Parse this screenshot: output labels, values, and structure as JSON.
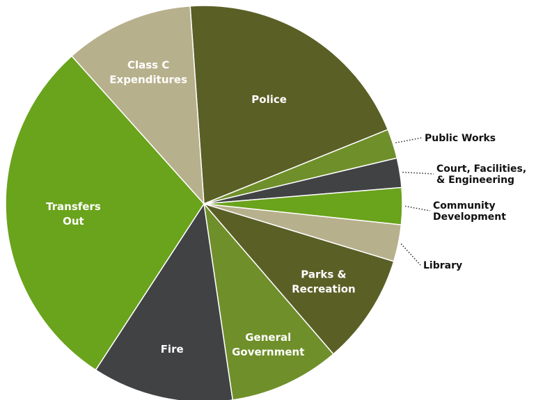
{
  "chart_data": {
    "type": "pie",
    "title": "",
    "slices": [
      {
        "name": "Police",
        "label_lines": [
          "Police"
        ],
        "value": 20.0,
        "color": "#5a5f26",
        "label_placement": "inside"
      },
      {
        "name": "Public Works",
        "label_lines": [
          "Public Works"
        ],
        "value": 2.4,
        "color": "#6f8f2a",
        "label_placement": "outside"
      },
      {
        "name": "Court, Facilities, & Engineering",
        "label_lines": [
          "Court, Facilities,",
          "& Engineering"
        ],
        "value": 2.4,
        "color": "#414244",
        "label_placement": "outside"
      },
      {
        "name": "Community Development",
        "label_lines": [
          "Community",
          "Development"
        ],
        "value": 3.0,
        "color": "#6aa31c",
        "label_placement": "outside"
      },
      {
        "name": "Library",
        "label_lines": [
          "Library"
        ],
        "value": 3.0,
        "color": "#b7b08c",
        "label_placement": "outside"
      },
      {
        "name": "Parks & Recreation",
        "label_lines": [
          "Parks &",
          "Recreation"
        ],
        "value": 9.0,
        "color": "#5a5f26",
        "label_placement": "inside"
      },
      {
        "name": "General Government",
        "label_lines": [
          "General",
          "Government"
        ],
        "value": 9.0,
        "color": "#6f8f2a",
        "label_placement": "inside"
      },
      {
        "name": "Fire",
        "label_lines": [
          "Fire"
        ],
        "value": 11.5,
        "color": "#414244",
        "label_placement": "inside"
      },
      {
        "name": "Transfers Out",
        "label_lines": [
          "Transfers",
          "Out"
        ],
        "value": 29.2,
        "color": "#6aa31c",
        "label_placement": "inside"
      },
      {
        "name": "Class C Expenditures",
        "label_lines": [
          "Class C",
          "Expenditures"
        ],
        "value": 10.5,
        "color": "#b7b08c",
        "label_placement": "inside"
      }
    ]
  }
}
